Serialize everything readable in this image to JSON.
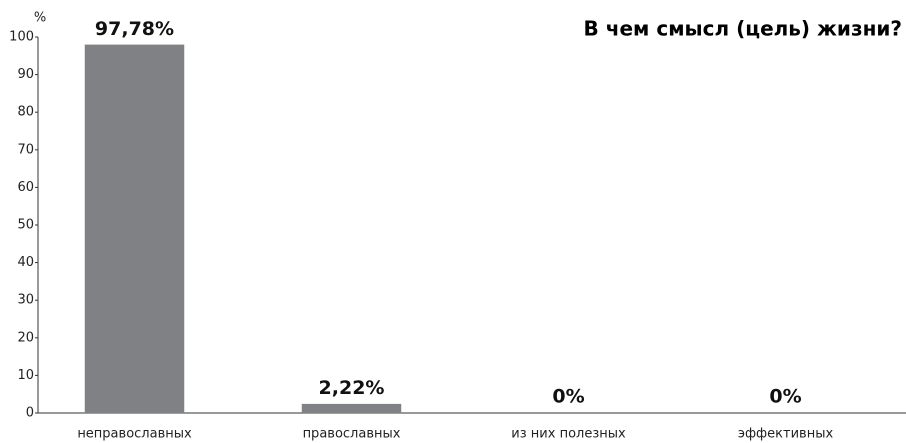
{
  "chart_data": {
    "type": "bar",
    "title": "В чем смысл (цель) жизни?",
    "y_label": "%",
    "categories": [
      "неправославных",
      "православных",
      "из них полезных",
      "эффективных"
    ],
    "values": [
      97.78,
      2.22,
      0,
      0
    ],
    "value_labels": [
      "97,78%",
      "2,22%",
      "0%",
      "0%"
    ],
    "color": "#808184",
    "ylim": [
      0,
      100
    ],
    "yticks": [
      0,
      10,
      20,
      30,
      40,
      50,
      60,
      70,
      80,
      90,
      100
    ],
    "grid": false
  }
}
